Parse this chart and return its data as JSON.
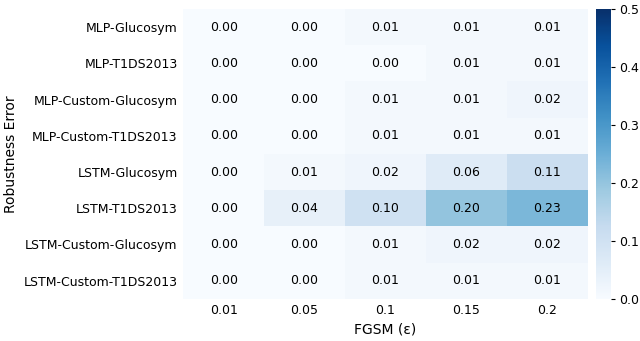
{
  "rows": [
    "MLP-Glucosym",
    "MLP-T1DS2013",
    "MLP-Custom-Glucosym",
    "MLP-Custom-T1DS2013",
    "LSTM-Glucosym",
    "LSTM-T1DS2013",
    "LSTM-Custom-Glucosym",
    "LSTM-Custom-T1DS2013"
  ],
  "cols": [
    "0.01",
    "0.05",
    "0.1",
    "0.15",
    "0.2"
  ],
  "values": [
    [
      0.0,
      0.0,
      0.01,
      0.01,
      0.01
    ],
    [
      0.0,
      0.0,
      0.0,
      0.01,
      0.01
    ],
    [
      0.0,
      0.0,
      0.01,
      0.01,
      0.02
    ],
    [
      0.0,
      0.0,
      0.01,
      0.01,
      0.01
    ],
    [
      0.0,
      0.01,
      0.02,
      0.06,
      0.11
    ],
    [
      0.0,
      0.04,
      0.1,
      0.2,
      0.23
    ],
    [
      0.0,
      0.0,
      0.01,
      0.02,
      0.02
    ],
    [
      0.0,
      0.0,
      0.01,
      0.01,
      0.01
    ]
  ],
  "xlabel": "FGSM (ε)",
  "ylabel": "Robustness Error",
  "cbar_ticks": [
    0.0,
    0.1,
    0.2,
    0.3,
    0.4,
    0.5
  ],
  "vmin": 0.0,
  "vmax": 0.5,
  "cmap": "Blues",
  "bg_color": "#eaeaf2",
  "fig_bg": "#ffffff",
  "figsize": [
    6.4,
    3.41
  ],
  "dpi": 100,
  "annot_fontsize": 9,
  "label_fontsize": 9,
  "xlabel_fontsize": 10,
  "ylabel_fontsize": 10
}
